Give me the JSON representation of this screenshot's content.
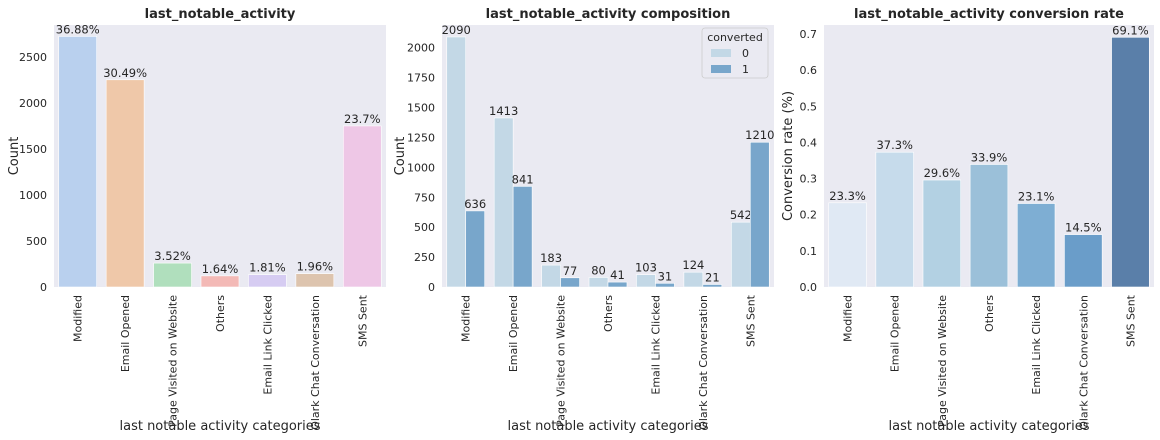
{
  "chart_data": [
    {
      "type": "bar",
      "title": "last_notable_activity",
      "xlabel": "last notable activity categories",
      "ylabel": "Count",
      "categories": [
        "Modified",
        "Email Opened",
        "Page Visited on Website",
        "Others",
        "Email Link Clicked",
        "Olark Chat Conversation",
        "SMS Sent"
      ],
      "values": [
        2726,
        2254,
        260,
        121,
        134,
        145,
        1752
      ],
      "data_labels": [
        "36.88%",
        "30.49%",
        "3.52%",
        "1.64%",
        "1.81%",
        "1.96%",
        "23.7%"
      ],
      "colors": [
        "#b9d0ee",
        "#efc8a9",
        "#b0dfbd",
        "#f3b9b6",
        "#d6ccf2",
        "#ddc4ae",
        "#eec7e6"
      ],
      "ylim": [
        0,
        2850
      ],
      "yticks": [
        0,
        500,
        1000,
        1500,
        2000,
        2500
      ],
      "grid": false
    },
    {
      "type": "bar",
      "title": "last_notable_activity composition",
      "xlabel": "last notable activity categories",
      "ylabel": "Count",
      "categories": [
        "Modified",
        "Email Opened",
        "Page Visited on Website",
        "Others",
        "Email Link Clicked",
        "Olark Chat Conversation",
        "SMS Sent"
      ],
      "series": [
        {
          "name": "0",
          "values": [
            2090,
            1413,
            183,
            80,
            103,
            124,
            542
          ],
          "color": "#c3d8e6"
        },
        {
          "name": "1",
          "values": [
            636,
            841,
            77,
            41,
            31,
            21,
            1210
          ],
          "color": "#78a6cb"
        }
      ],
      "legend_title": "converted",
      "legend_position": "top-right",
      "ylim": [
        0,
        2190
      ],
      "yticks": [
        0,
        250,
        500,
        750,
        1000,
        1250,
        1500,
        1750,
        2000
      ],
      "grid": false
    },
    {
      "type": "bar",
      "title": "last_notable_activity conversion rate",
      "xlabel": "last notable activity categories",
      "ylabel": "Conversion rate (%)",
      "categories": [
        "Modified",
        "Email Opened",
        "Page Visited on Website",
        "Others",
        "Email Link Clicked",
        "Olark Chat Conversation",
        "SMS Sent"
      ],
      "values": [
        0.233,
        0.373,
        0.296,
        0.339,
        0.231,
        0.145,
        0.691
      ],
      "data_labels": [
        "23.3%",
        "37.3%",
        "29.6%",
        "33.9%",
        "23.1%",
        "14.5%",
        "69.1%"
      ],
      "colors": [
        "#e0e9f4",
        "#c6dbeb",
        "#b3d1e3",
        "#9bc0d9",
        "#7eaed3",
        "#6a9dc9",
        "#5a7fa9"
      ],
      "ylim": [
        0,
        0.725
      ],
      "yticks": [
        0.0,
        0.1,
        0.2,
        0.3,
        0.4,
        0.5,
        0.6,
        0.7
      ],
      "ytick_labels": [
        "0.0",
        "0.1",
        "0.2",
        "0.3",
        "0.4",
        "0.5",
        "0.6",
        "0.7"
      ],
      "grid": false
    }
  ],
  "style": {
    "plot_background": "#eaeaf2",
    "text_color": "#262626"
  }
}
